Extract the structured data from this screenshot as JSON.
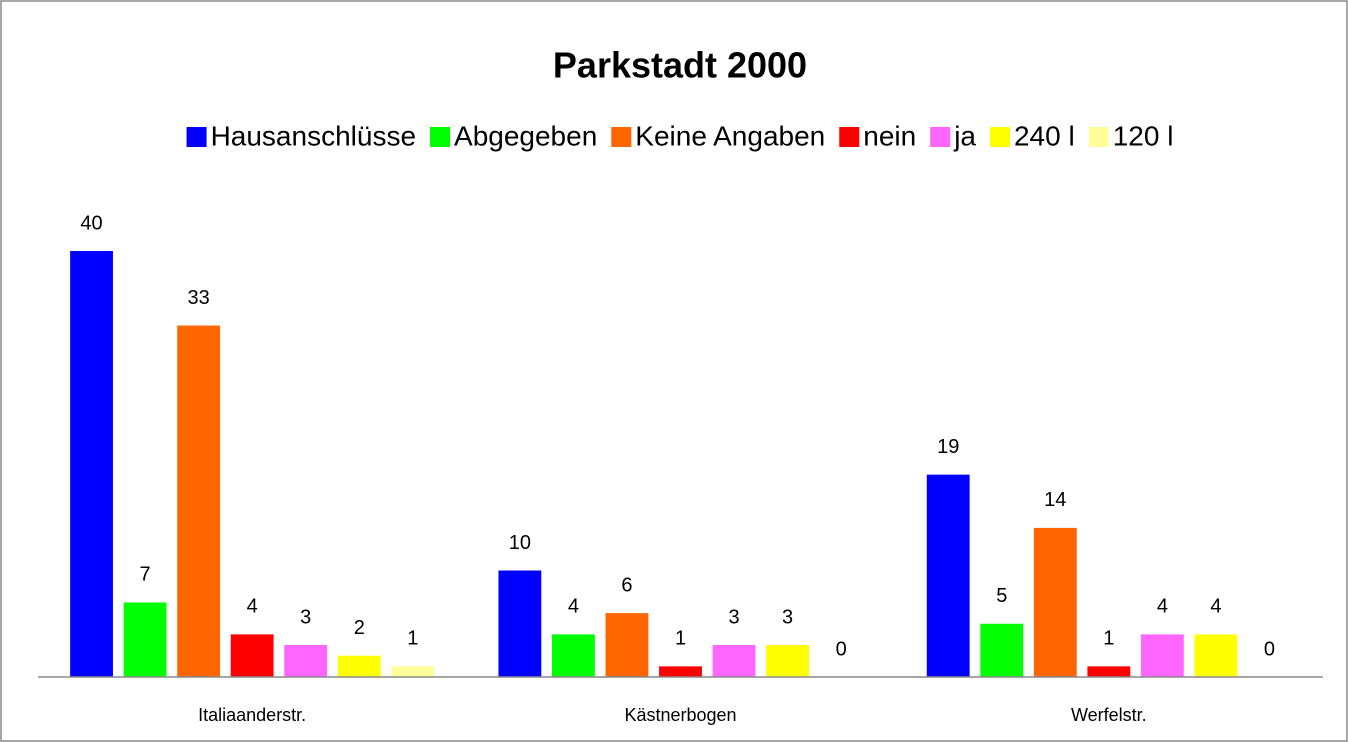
{
  "chart_data": {
    "type": "bar",
    "title": "Parkstadt 2000",
    "categories": [
      "Italiaanderstr.",
      "Kästnerbogen",
      "Werfelstr."
    ],
    "series": [
      {
        "name": "Hausanschlüsse",
        "color": "#0000ff",
        "values": [
          40,
          10,
          19
        ]
      },
      {
        "name": "Abgegeben",
        "color": "#00ff00",
        "values": [
          7,
          4,
          5
        ]
      },
      {
        "name": "Keine Angaben",
        "color": "#ff6600",
        "values": [
          33,
          6,
          14
        ]
      },
      {
        "name": "nein",
        "color": "#ff0000",
        "values": [
          4,
          1,
          1
        ]
      },
      {
        "name": "ja",
        "color": "#ff66ff",
        "values": [
          3,
          3,
          4
        ]
      },
      {
        "name": "240 l",
        "color": "#ffff00",
        "values": [
          2,
          3,
          4
        ]
      },
      {
        "name": "120 l",
        "color": "#ffff99",
        "values": [
          1,
          0,
          0
        ]
      }
    ],
    "ylim": [
      0,
      40
    ],
    "legend": "top"
  }
}
